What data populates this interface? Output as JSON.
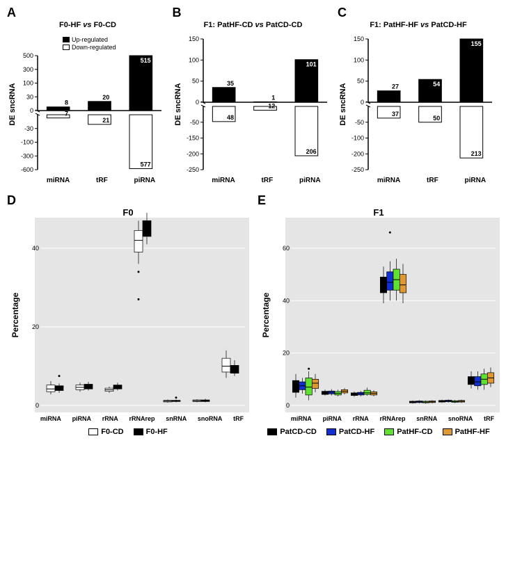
{
  "panelA": {
    "label": "A",
    "title": "F0-HF vs F0-CD",
    "y_label": "DE sncRNA",
    "categories": [
      "miRNA",
      "tRF",
      "piRNA"
    ],
    "up": [
      8,
      20,
      515
    ],
    "down": [
      7,
      21,
      577
    ],
    "y_breaks_pos": [
      0,
      30,
      100,
      300,
      500
    ],
    "y_breaks_neg": [
      -30,
      -100,
      -300,
      -600
    ],
    "up_color": "#000000",
    "down_color": "#ffffff",
    "legend": {
      "up": "Up-regulated",
      "down": "Down-regulated"
    }
  },
  "panelB": {
    "label": "B",
    "title": "F1: PatHF-CD vs PatCD-CD",
    "y_label": "DE sncRNA",
    "categories": [
      "miRNA",
      "tRF",
      "piRNA"
    ],
    "up": [
      35,
      1,
      101
    ],
    "down": [
      48,
      12,
      206
    ],
    "y_breaks_pos": [
      0,
      50,
      100,
      150
    ],
    "y_breaks_neg": [
      -50,
      -150,
      -200,
      -250
    ],
    "up_color": "#000000",
    "down_color": "#ffffff"
  },
  "panelC": {
    "label": "C",
    "title": "F1: PatHF-HF vs PatCD-HF",
    "y_label": "DE sncRNA",
    "categories": [
      "miRNA",
      "tRF",
      "piRNA"
    ],
    "up": [
      27,
      54,
      155
    ],
    "down": [
      37,
      50,
      213
    ],
    "y_breaks_pos": [
      0,
      50,
      100,
      150
    ],
    "y_breaks_neg": [
      -50,
      -100,
      -200,
      -250
    ],
    "up_color": "#000000",
    "down_color": "#ffffff"
  },
  "panelD": {
    "label": "D",
    "title": "F0",
    "y_label": "Percentage",
    "categories": [
      "miRNA",
      "piRNA",
      "rRNA",
      "rRNArep",
      "snRNA",
      "snoRNA",
      "tRF"
    ],
    "y_ticks": [
      0,
      20,
      40
    ],
    "groups": [
      {
        "name": "F0-CD",
        "color": "#ffffff"
      },
      {
        "name": "F0-HF",
        "color": "#000000"
      }
    ],
    "data": {
      "miRNA": [
        {
          "q1": 3.5,
          "med": 4.2,
          "q3": 5.2,
          "lo": 2.8,
          "hi": 6.2
        },
        {
          "q1": 3.8,
          "med": 4.4,
          "q3": 5.0,
          "lo": 3.2,
          "hi": 5.6,
          "outliers": [
            7.5
          ]
        }
      ],
      "piRNA": [
        {
          "q1": 4.0,
          "med": 4.6,
          "q3": 5.2,
          "lo": 3.5,
          "hi": 5.8
        },
        {
          "q1": 4.2,
          "med": 4.6,
          "q3": 5.4,
          "lo": 3.8,
          "hi": 6.0
        }
      ],
      "rRNA": [
        {
          "q1": 3.6,
          "med": 4.0,
          "q3": 4.4,
          "lo": 3.2,
          "hi": 4.8
        },
        {
          "q1": 4.2,
          "med": 4.8,
          "q3": 5.2,
          "lo": 3.8,
          "hi": 5.8
        }
      ],
      "rRNArep": [
        {
          "q1": 39,
          "med": 42,
          "q3": 44.5,
          "lo": 36,
          "hi": 47,
          "outliers": [
            34,
            27
          ]
        },
        {
          "q1": 43,
          "med": 45,
          "q3": 47,
          "lo": 41,
          "hi": 49
        }
      ],
      "snRNA": [
        {
          "q1": 0.9,
          "med": 1.1,
          "q3": 1.3,
          "lo": 0.7,
          "hi": 1.5
        },
        {
          "q1": 1.0,
          "med": 1.2,
          "q3": 1.3,
          "lo": 0.8,
          "hi": 1.5,
          "outliers": [
            2.0
          ]
        }
      ],
      "snoRNA": [
        {
          "q1": 1.0,
          "med": 1.2,
          "q3": 1.4,
          "lo": 0.8,
          "hi": 1.6
        },
        {
          "q1": 1.0,
          "med": 1.1,
          "q3": 1.4,
          "lo": 0.8,
          "hi": 1.7
        }
      ],
      "tRF": [
        {
          "q1": 8.5,
          "med": 10,
          "q3": 12,
          "lo": 7,
          "hi": 14
        },
        {
          "q1": 8.2,
          "med": 9.2,
          "q3": 10.2,
          "lo": 7.5,
          "hi": 11.5
        }
      ]
    }
  },
  "panelE": {
    "label": "E",
    "title": "F1",
    "y_label": "Percentage",
    "categories": [
      "miRNA",
      "piRNA",
      "rRNA",
      "rRNArep",
      "snRNA",
      "snoRNA",
      "tRF"
    ],
    "y_ticks": [
      0,
      20,
      40,
      60
    ],
    "groups": [
      {
        "name": "PatCD-CD",
        "color": "#000000"
      },
      {
        "name": "PatCD-HF",
        "color": "#1030d0"
      },
      {
        "name": "PatHF-CD",
        "color": "#60e030"
      },
      {
        "name": "PatHF-HF",
        "color": "#e09830"
      }
    ],
    "data": {
      "miRNA": [
        {
          "q1": 5,
          "med": 7,
          "q3": 9.5,
          "lo": 3,
          "hi": 12
        },
        {
          "q1": 6,
          "med": 7.5,
          "q3": 9,
          "lo": 4.5,
          "hi": 10.5
        },
        {
          "q1": 4,
          "med": 7,
          "q3": 10.5,
          "lo": 2,
          "hi": 13,
          "outliers": [
            14
          ]
        },
        {
          "q1": 6.5,
          "med": 8.5,
          "q3": 10,
          "lo": 5,
          "hi": 12
        }
      ],
      "piRNA": [
        {
          "q1": 4.2,
          "med": 4.8,
          "q3": 5.4,
          "lo": 3.8,
          "hi": 6.0
        },
        {
          "q1": 4.4,
          "med": 5.0,
          "q3": 5.5,
          "lo": 3.8,
          "hi": 6.2
        },
        {
          "q1": 4.0,
          "med": 4.6,
          "q3": 5.3,
          "lo": 3.5,
          "hi": 6.0
        },
        {
          "q1": 4.8,
          "med": 5.4,
          "q3": 6.0,
          "lo": 4.2,
          "hi": 6.6
        }
      ],
      "rRNA": [
        {
          "q1": 3.8,
          "med": 4.3,
          "q3": 4.8,
          "lo": 3.3,
          "hi": 5.3
        },
        {
          "q1": 4.0,
          "med": 4.5,
          "q3": 5.0,
          "lo": 3.5,
          "hi": 5.5
        },
        {
          "q1": 4.2,
          "med": 4.8,
          "q3": 5.8,
          "lo": 3.7,
          "hi": 6.8
        },
        {
          "q1": 4.0,
          "med": 4.6,
          "q3": 5.2,
          "lo": 3.5,
          "hi": 5.8
        }
      ],
      "rRNArep": [
        {
          "q1": 43,
          "med": 46,
          "q3": 49,
          "lo": 39,
          "hi": 53
        },
        {
          "q1": 44,
          "med": 47,
          "q3": 51,
          "lo": 40,
          "hi": 55,
          "outliers": [
            66
          ]
        },
        {
          "q1": 44,
          "med": 48,
          "q3": 52,
          "lo": 40,
          "hi": 56
        },
        {
          "q1": 43,
          "med": 46,
          "q3": 50,
          "lo": 39,
          "hi": 54
        }
      ],
      "snRNA": [
        {
          "q1": 1.0,
          "med": 1.3,
          "q3": 1.6,
          "lo": 0.7,
          "hi": 1.9
        },
        {
          "q1": 1.1,
          "med": 1.4,
          "q3": 1.7,
          "lo": 0.8,
          "hi": 2.0
        },
        {
          "q1": 1.0,
          "med": 1.3,
          "q3": 1.6,
          "lo": 0.7,
          "hi": 1.9
        },
        {
          "q1": 1.1,
          "med": 1.4,
          "q3": 1.7,
          "lo": 0.8,
          "hi": 2.0
        }
      ],
      "snoRNA": [
        {
          "q1": 1.3,
          "med": 1.6,
          "q3": 1.9,
          "lo": 1.0,
          "hi": 2.2
        },
        {
          "q1": 1.4,
          "med": 1.7,
          "q3": 2.0,
          "lo": 1.1,
          "hi": 2.3
        },
        {
          "q1": 1.2,
          "med": 1.5,
          "q3": 1.8,
          "lo": 0.9,
          "hi": 2.1
        },
        {
          "q1": 1.3,
          "med": 1.6,
          "q3": 1.9,
          "lo": 1.0,
          "hi": 2.2
        }
      ],
      "tRF": [
        {
          "q1": 8,
          "med": 9.5,
          "q3": 11,
          "lo": 6.5,
          "hi": 13
        },
        {
          "q1": 7.5,
          "med": 9,
          "q3": 11,
          "lo": 6,
          "hi": 13
        },
        {
          "q1": 8,
          "med": 10,
          "q3": 12,
          "lo": 6,
          "hi": 14
        },
        {
          "q1": 8.5,
          "med": 10.5,
          "q3": 12.5,
          "lo": 7,
          "hi": 14.5
        }
      ]
    }
  }
}
